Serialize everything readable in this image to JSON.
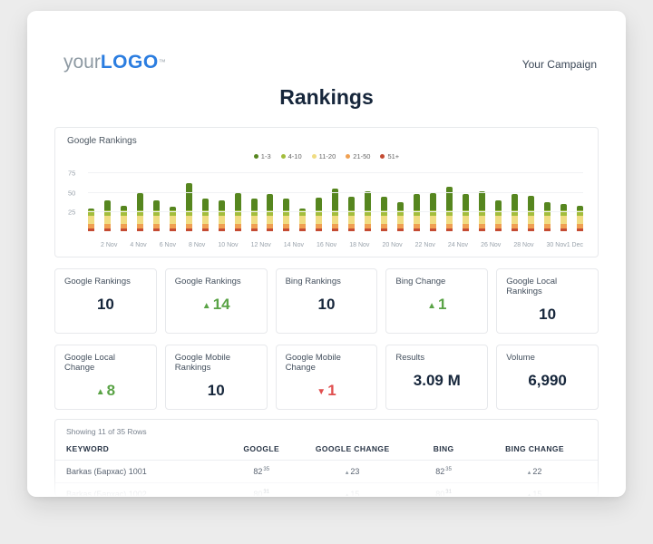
{
  "header": {
    "logo_prefix": "your",
    "logo_main": "LOGO",
    "logo_tm": "™",
    "campaign": "Your Campaign",
    "title": "Rankings"
  },
  "chart_panel_title": "Google Rankings",
  "chart_data": {
    "type": "bar",
    "stacked": true,
    "title": "Google Rankings",
    "xlabel": "",
    "ylabel": "",
    "ylim": [
      0,
      80
    ],
    "yticks": [
      25,
      50,
      75
    ],
    "grid": true,
    "legend_position": "top-center",
    "categories": [
      "1 Nov",
      "2 Nov",
      "3 Nov",
      "4 Nov",
      "5 Nov",
      "6 Nov",
      "7 Nov",
      "8 Nov",
      "9 Nov",
      "10 Nov",
      "11 Nov",
      "12 Nov",
      "13 Nov",
      "14 Nov",
      "15 Nov",
      "16 Nov",
      "17 Nov",
      "18 Nov",
      "19 Nov",
      "20 Nov",
      "21 Nov",
      "22 Nov",
      "23 Nov",
      "24 Nov",
      "25 Nov",
      "26 Nov",
      "27 Nov",
      "28 Nov",
      "29 Nov",
      "30 Nov",
      "1 Dec"
    ],
    "x_labels": [
      "",
      "2 Nov",
      "",
      "4 Nov",
      "",
      "6 Nov",
      "",
      "8 Nov",
      "",
      "10 Nov",
      "",
      "12 Nov",
      "",
      "14 Nov",
      "",
      "16 Nov",
      "",
      "18 Nov",
      "",
      "20 Nov",
      "",
      "22 Nov",
      "",
      "24 Nov",
      "",
      "26 Nov",
      "",
      "28 Nov",
      "",
      "30 Nov",
      "1 Dec"
    ],
    "series": [
      {
        "name": "1-3",
        "color": "#56861f",
        "values": [
          3,
          13,
          6,
          23,
          13,
          5,
          35,
          15,
          13,
          23,
          15,
          21,
          15,
          3,
          17,
          28,
          18,
          25,
          18,
          11,
          21,
          23,
          31,
          21,
          25,
          13,
          21,
          19,
          11,
          8,
          6
        ]
      },
      {
        "name": "4-10",
        "color": "#a3bd3c",
        "values": [
          7,
          7,
          7,
          7,
          7,
          7,
          7,
          7,
          7,
          7,
          7,
          7,
          7,
          7,
          7,
          7,
          7,
          7,
          7,
          7,
          7,
          7,
          7,
          7,
          7,
          7,
          7,
          7,
          7,
          7,
          7
        ]
      },
      {
        "name": "11-20",
        "color": "#f0dc82",
        "values": [
          10,
          10,
          10,
          10,
          10,
          10,
          10,
          10,
          10,
          10,
          10,
          10,
          10,
          10,
          10,
          10,
          10,
          10,
          10,
          10,
          10,
          10,
          10,
          10,
          10,
          10,
          10,
          10,
          10,
          10,
          10
        ]
      },
      {
        "name": "21-50",
        "color": "#f0a052",
        "values": [
          7,
          7,
          7,
          7,
          7,
          7,
          7,
          7,
          7,
          7,
          7,
          7,
          7,
          7,
          7,
          7,
          7,
          7,
          7,
          7,
          7,
          7,
          7,
          7,
          7,
          7,
          7,
          7,
          7,
          7,
          7
        ]
      },
      {
        "name": "51+",
        "color": "#c44b33",
        "values": [
          3,
          3,
          3,
          3,
          3,
          3,
          3,
          3,
          3,
          3,
          3,
          3,
          3,
          3,
          3,
          3,
          3,
          3,
          3,
          3,
          3,
          3,
          3,
          3,
          3,
          3,
          3,
          3,
          3,
          3,
          3
        ]
      }
    ]
  },
  "stats": {
    "cards": [
      {
        "label": "Google Rankings",
        "value": "10",
        "type": "plain"
      },
      {
        "label": "Google Rankings",
        "value": "14",
        "type": "up"
      },
      {
        "label": "Bing Rankings",
        "value": "10",
        "type": "plain"
      },
      {
        "label": "Bing Change",
        "value": "1",
        "type": "up"
      },
      {
        "label": "Google Local Rankings",
        "value": "10",
        "type": "plain"
      },
      {
        "label": "Google Local Change",
        "value": "8",
        "type": "up"
      },
      {
        "label": "Google Mobile Rankings",
        "value": "10",
        "type": "plain"
      },
      {
        "label": "Google Mobile Change",
        "value": "1",
        "type": "down"
      },
      {
        "label": "Results",
        "value": "3.09 M",
        "type": "plain"
      },
      {
        "label": "Volume",
        "value": "6,990",
        "type": "plain"
      }
    ],
    "up_color": "#5aa346",
    "down_color": "#e04f4f"
  },
  "table": {
    "summary": "Showing 11 of 35 Rows",
    "columns": [
      "KEYWORD",
      "GOOGLE",
      "GOOGLE CHANGE",
      "BING",
      "BING CHANGE"
    ],
    "rows": [
      {
        "keyword": "Barkas (Бархас) 1001",
        "google": "82",
        "google_sup": "35",
        "google_change": "23",
        "bing": "82",
        "bing_sup": "35",
        "bing_change": "22",
        "faint": false
      },
      {
        "keyword": "Barkas (Бархас) 1002",
        "google": "80",
        "google_sup": "31",
        "google_change": "15",
        "bing": "80",
        "bing_sup": "31",
        "bing_change": "15",
        "faint": true
      }
    ]
  }
}
